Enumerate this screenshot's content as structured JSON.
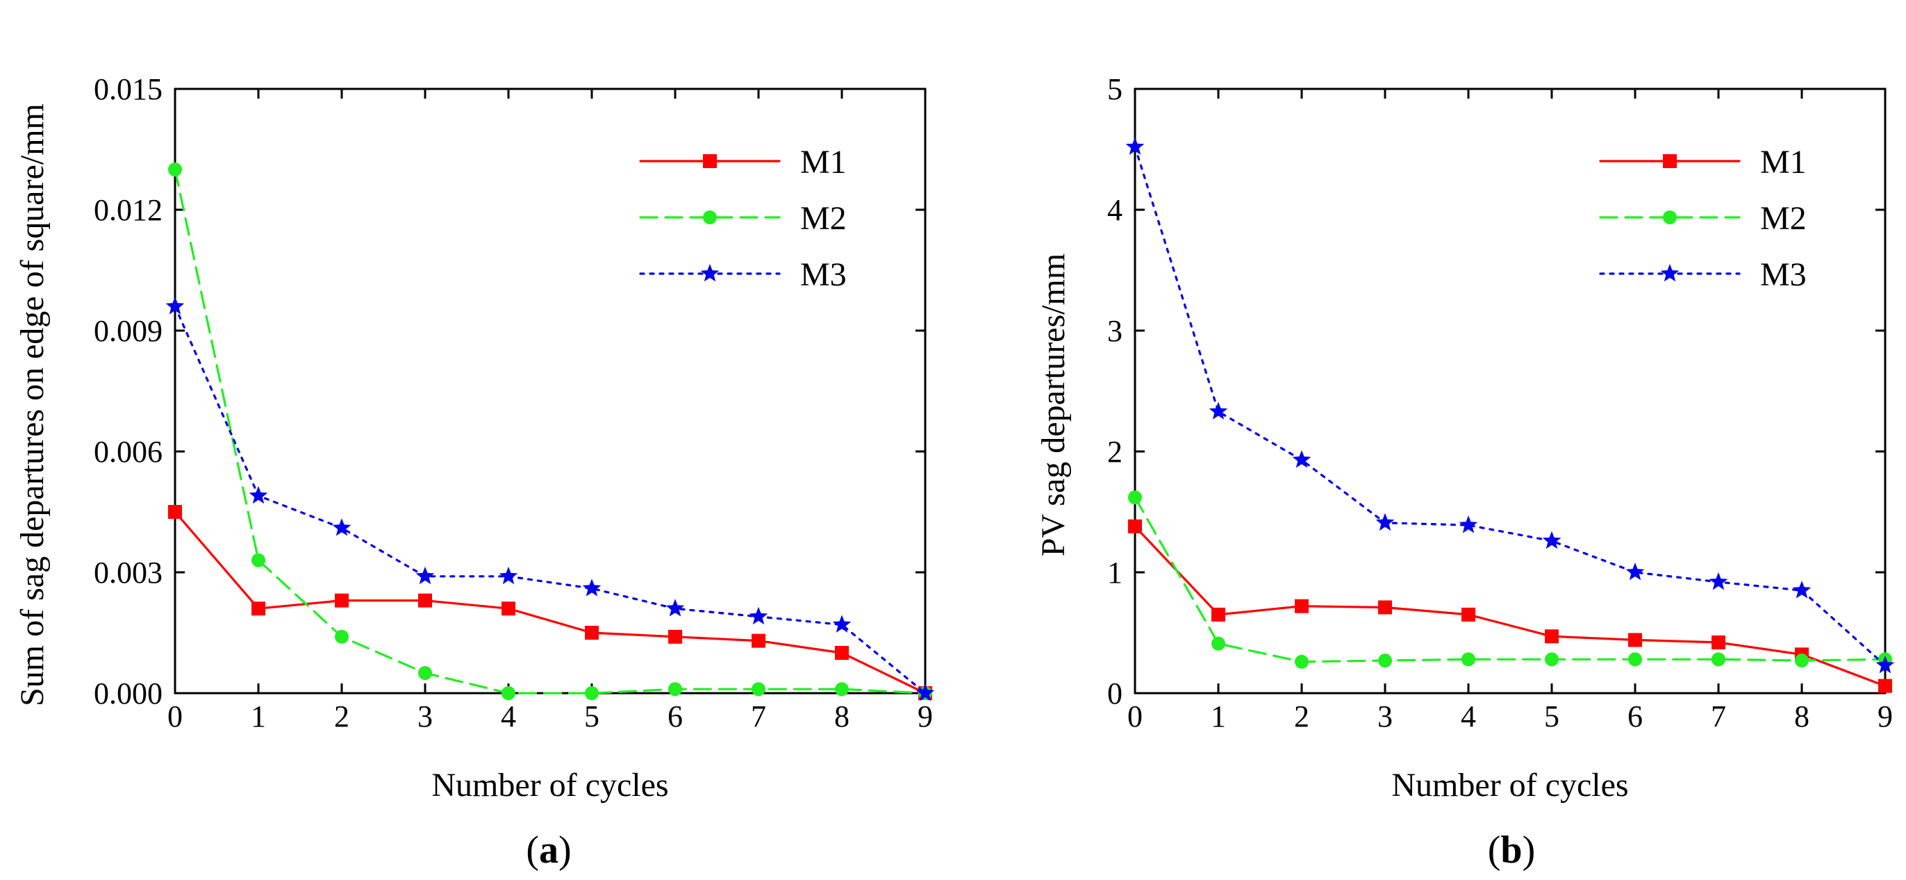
{
  "chart_data": [
    {
      "id": "a",
      "type": "line",
      "caption_letter": "a",
      "xlabel": "Number of cycles",
      "ylabel": "Sum of sag departures on edge of square/mm",
      "xlim": [
        0,
        9
      ],
      "ylim": [
        0,
        0.015
      ],
      "xticks": [
        0,
        1,
        2,
        3,
        4,
        5,
        6,
        7,
        8,
        9
      ],
      "yticks": [
        "0.000",
        "0.003",
        "0.006",
        "0.009",
        "0.012",
        "0.015"
      ],
      "x": [
        0,
        1,
        2,
        3,
        4,
        5,
        6,
        7,
        8,
        9
      ],
      "series": [
        {
          "name": "M1",
          "color": "#ff0000",
          "dash": "solid",
          "marker": "square",
          "values": [
            0.0045,
            0.0021,
            0.0023,
            0.0023,
            0.0021,
            0.0015,
            0.0014,
            0.0013,
            0.001,
            0.0
          ]
        },
        {
          "name": "M2",
          "color": "#22ee22",
          "dash": "dashed",
          "marker": "circle",
          "values": [
            0.013,
            0.0033,
            0.0014,
            0.0005,
            0.0,
            0.0,
            0.0001,
            0.0001,
            0.0001,
            0.0
          ]
        },
        {
          "name": "M3",
          "color": "#0000ee",
          "dash": "dotted",
          "marker": "star",
          "values": [
            0.0096,
            0.0049,
            0.0041,
            0.0029,
            0.0029,
            0.0026,
            0.0021,
            0.0019,
            0.0017,
            0.0
          ]
        }
      ],
      "legend_position": "top-right"
    },
    {
      "id": "b",
      "type": "line",
      "caption_letter": "b",
      "xlabel": "Number of cycles",
      "ylabel": "PV sag departures/mm",
      "xlim": [
        0,
        9
      ],
      "ylim": [
        0,
        5
      ],
      "xticks": [
        0,
        1,
        2,
        3,
        4,
        5,
        6,
        7,
        8,
        9
      ],
      "yticks": [
        "0",
        "1",
        "2",
        "3",
        "4",
        "5"
      ],
      "x": [
        0,
        1,
        2,
        3,
        4,
        5,
        6,
        7,
        8,
        9
      ],
      "series": [
        {
          "name": "M1",
          "color": "#ff0000",
          "dash": "solid",
          "marker": "square",
          "values": [
            1.38,
            0.65,
            0.72,
            0.71,
            0.65,
            0.47,
            0.44,
            0.42,
            0.32,
            0.06
          ]
        },
        {
          "name": "M2",
          "color": "#22ee22",
          "dash": "dashed",
          "marker": "circle",
          "values": [
            1.62,
            0.41,
            0.26,
            0.27,
            0.28,
            0.28,
            0.28,
            0.28,
            0.27,
            0.28
          ]
        },
        {
          "name": "M3",
          "color": "#0000ee",
          "dash": "dotted",
          "marker": "star",
          "values": [
            4.52,
            2.33,
            1.93,
            1.41,
            1.39,
            1.26,
            1.0,
            0.92,
            0.85,
            0.23
          ]
        }
      ],
      "legend_position": "top-right"
    }
  ]
}
